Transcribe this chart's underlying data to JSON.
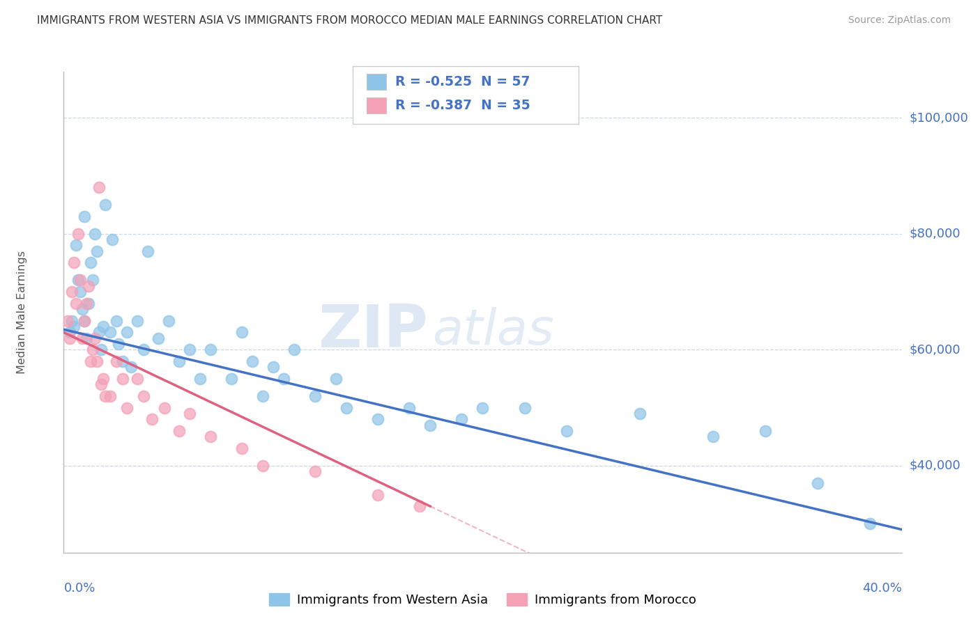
{
  "title": "IMMIGRANTS FROM WESTERN ASIA VS IMMIGRANTS FROM MOROCCO MEDIAN MALE EARNINGS CORRELATION CHART",
  "source": "Source: ZipAtlas.com",
  "ylabel": "Median Male Earnings",
  "xmin": 0.0,
  "xmax": 0.4,
  "ymin": 25000,
  "ymax": 108000,
  "yticks": [
    40000,
    60000,
    80000,
    100000
  ],
  "ytick_labels": [
    "$40,000",
    "$60,000",
    "$80,000",
    "$100,000"
  ],
  "series1_label": "Immigrants from Western Asia",
  "series1_color": "#8ec4e8",
  "series1_line_color": "#4472c4",
  "series1_R": -0.525,
  "series1_N": 57,
  "series2_label": "Immigrants from Morocco",
  "series2_color": "#f4a0b5",
  "series2_line_color": "#e06080",
  "series2_R": -0.387,
  "series2_N": 35,
  "title_color": "#333333",
  "source_color": "#999999",
  "axis_color": "#4472c4",
  "watermark_zip": "ZIP",
  "watermark_atlas": "atlas",
  "grid_color": "#c8d8ea",
  "blue_line_y0": 63500,
  "blue_line_y1": 29000,
  "pink_line_y0": 63000,
  "pink_line_y1": 33000,
  "pink_line_xmax": 0.175,
  "blue_scatter_x": [
    0.003,
    0.004,
    0.005,
    0.006,
    0.007,
    0.008,
    0.009,
    0.01,
    0.01,
    0.011,
    0.012,
    0.013,
    0.014,
    0.015,
    0.016,
    0.017,
    0.018,
    0.019,
    0.02,
    0.022,
    0.023,
    0.025,
    0.026,
    0.028,
    0.03,
    0.032,
    0.035,
    0.038,
    0.04,
    0.045,
    0.05,
    0.055,
    0.06,
    0.065,
    0.07,
    0.08,
    0.085,
    0.09,
    0.095,
    0.1,
    0.105,
    0.11,
    0.12,
    0.13,
    0.135,
    0.15,
    0.165,
    0.175,
    0.19,
    0.2,
    0.22,
    0.24,
    0.275,
    0.31,
    0.335,
    0.36,
    0.385
  ],
  "blue_scatter_y": [
    63000,
    65000,
    64000,
    78000,
    72000,
    70000,
    67000,
    65000,
    83000,
    62000,
    68000,
    75000,
    72000,
    80000,
    77000,
    63000,
    60000,
    64000,
    85000,
    63000,
    79000,
    65000,
    61000,
    58000,
    63000,
    57000,
    65000,
    60000,
    77000,
    62000,
    65000,
    58000,
    60000,
    55000,
    60000,
    55000,
    63000,
    58000,
    52000,
    57000,
    55000,
    60000,
    52000,
    55000,
    50000,
    48000,
    50000,
    47000,
    48000,
    50000,
    50000,
    46000,
    49000,
    45000,
    46000,
    37000,
    30000
  ],
  "pink_scatter_x": [
    0.002,
    0.003,
    0.004,
    0.005,
    0.006,
    0.007,
    0.008,
    0.009,
    0.01,
    0.011,
    0.012,
    0.013,
    0.014,
    0.015,
    0.016,
    0.017,
    0.018,
    0.019,
    0.02,
    0.022,
    0.025,
    0.028,
    0.03,
    0.035,
    0.038,
    0.042,
    0.048,
    0.055,
    0.06,
    0.07,
    0.085,
    0.095,
    0.12,
    0.15,
    0.17
  ],
  "pink_scatter_y": [
    65000,
    62000,
    70000,
    75000,
    68000,
    80000,
    72000,
    62000,
    65000,
    68000,
    71000,
    58000,
    60000,
    62000,
    58000,
    88000,
    54000,
    55000,
    52000,
    52000,
    58000,
    55000,
    50000,
    55000,
    52000,
    48000,
    50000,
    46000,
    49000,
    45000,
    43000,
    40000,
    39000,
    35000,
    33000
  ]
}
